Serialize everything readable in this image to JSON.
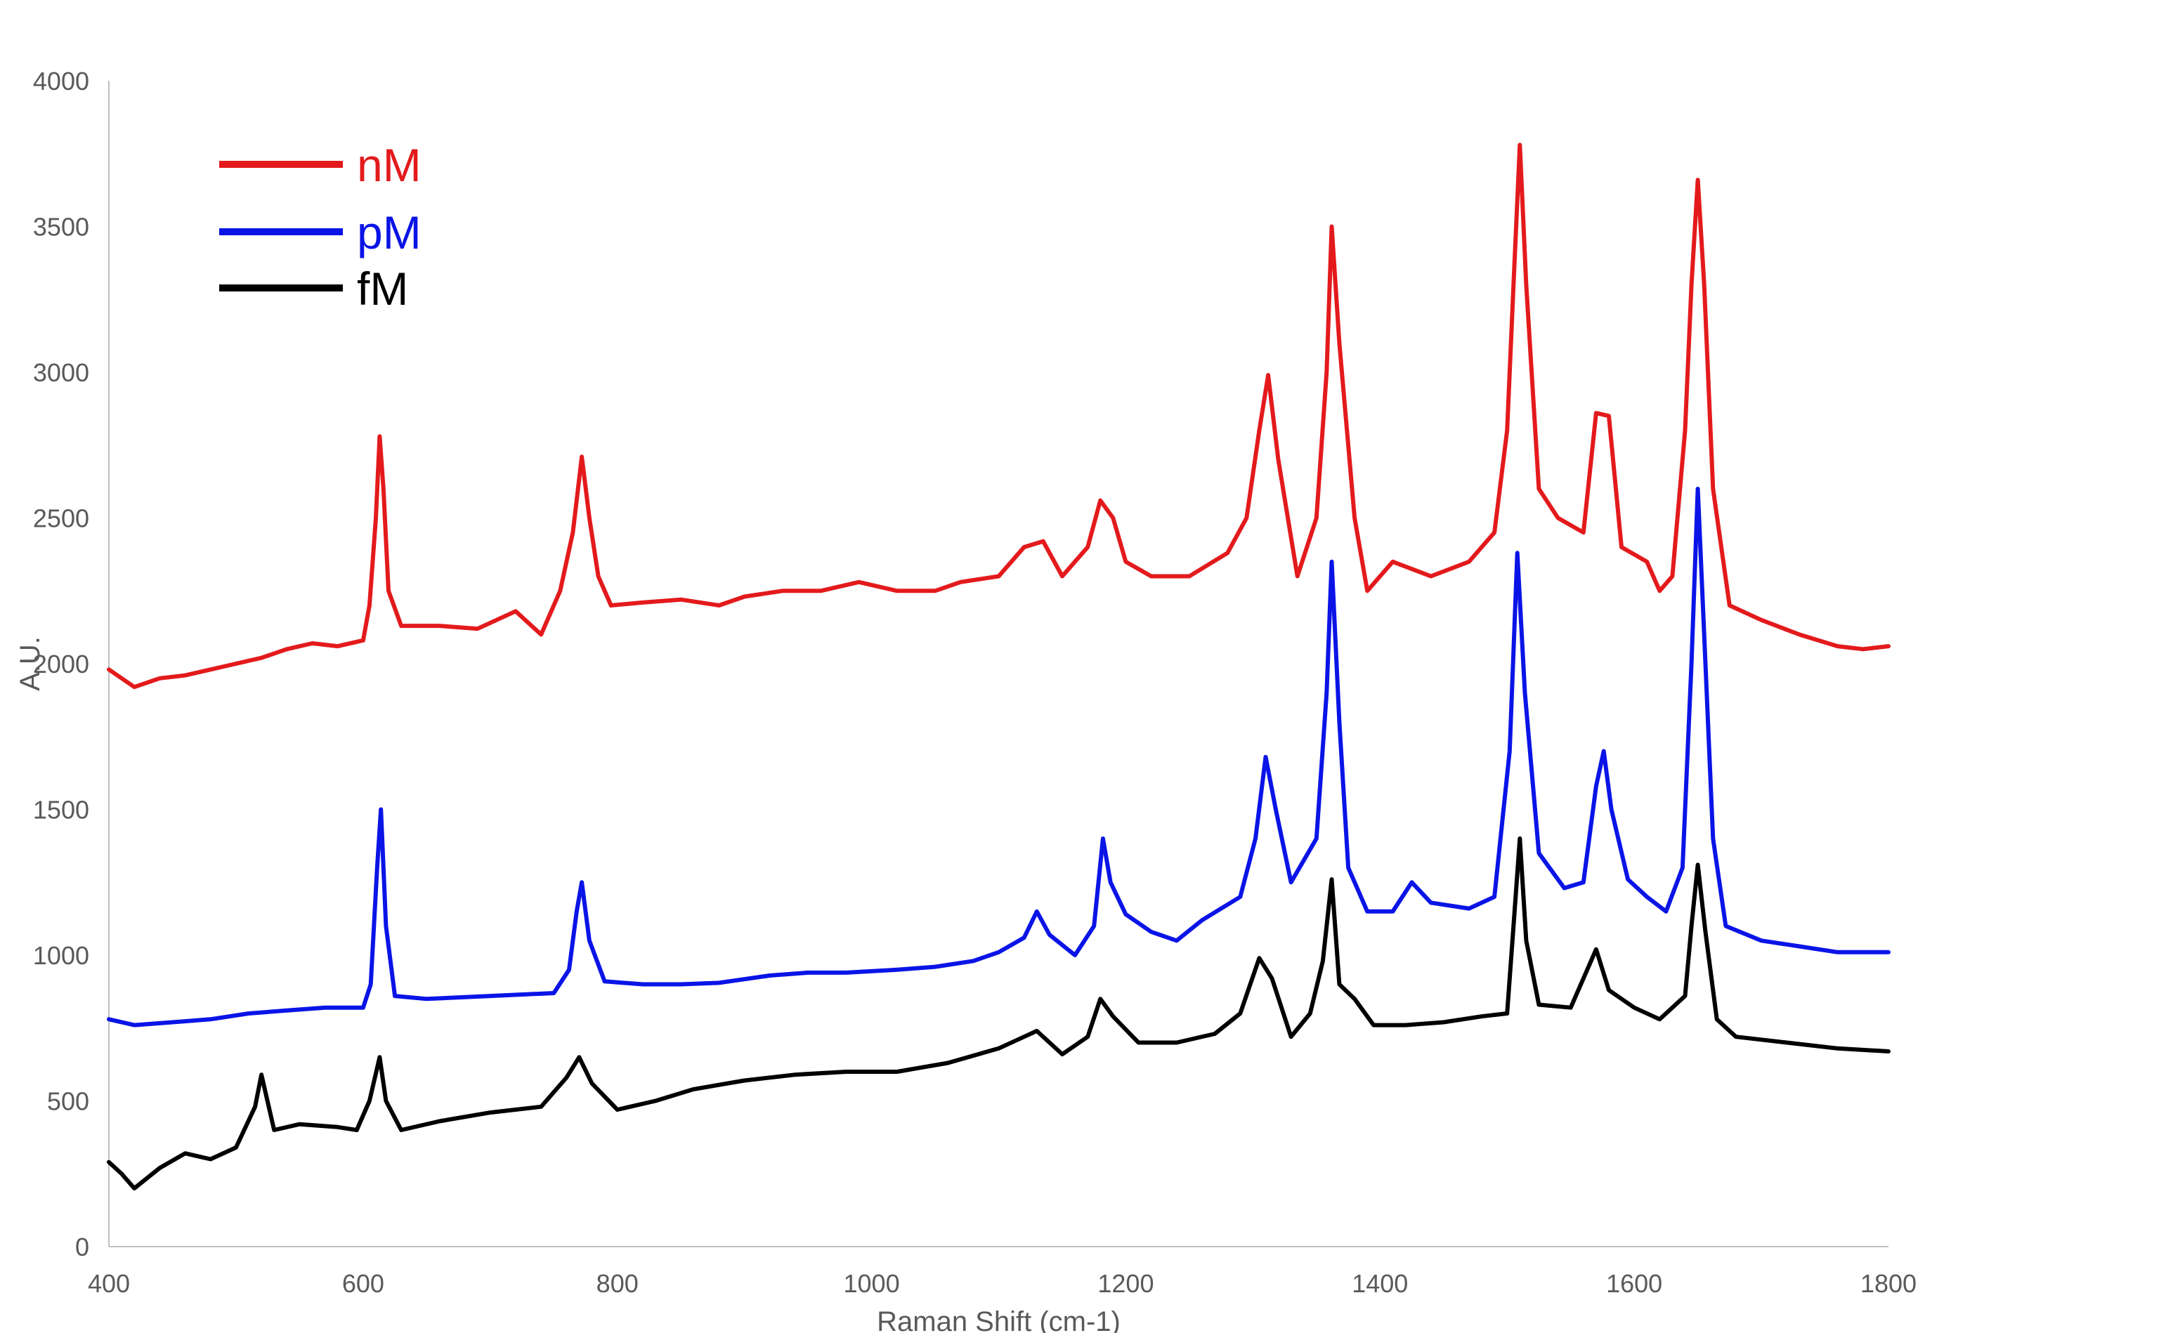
{
  "chart_data": {
    "type": "line",
    "xlabel": "Raman Shift (cm-1)",
    "ylabel": "A.U.",
    "xlim": [
      400,
      1800
    ],
    "ylim": [
      0,
      4000
    ],
    "x_ticks": [
      "400",
      "600",
      "800",
      "1000",
      "1200",
      "1400",
      "1600",
      "1800"
    ],
    "y_ticks": [
      "0",
      "500",
      "1000",
      "1500",
      "2000",
      "2500",
      "3000",
      "3500",
      "4000"
    ],
    "grid": false,
    "legend_position": "top-left",
    "series": [
      {
        "name": "nM",
        "color": "#e31a1c",
        "points": [
          [
            400,
            1980
          ],
          [
            420,
            1920
          ],
          [
            440,
            1950
          ],
          [
            460,
            1960
          ],
          [
            480,
            1980
          ],
          [
            500,
            2000
          ],
          [
            520,
            2020
          ],
          [
            540,
            2050
          ],
          [
            560,
            2070
          ],
          [
            580,
            2060
          ],
          [
            600,
            2080
          ],
          [
            605,
            2200
          ],
          [
            610,
            2500
          ],
          [
            613,
            2780
          ],
          [
            616,
            2600
          ],
          [
            620,
            2250
          ],
          [
            630,
            2130
          ],
          [
            660,
            2130
          ],
          [
            690,
            2120
          ],
          [
            720,
            2180
          ],
          [
            740,
            2100
          ],
          [
            755,
            2250
          ],
          [
            765,
            2450
          ],
          [
            772,
            2710
          ],
          [
            778,
            2500
          ],
          [
            785,
            2300
          ],
          [
            795,
            2200
          ],
          [
            820,
            2210
          ],
          [
            850,
            2220
          ],
          [
            880,
            2200
          ],
          [
            900,
            2230
          ],
          [
            930,
            2250
          ],
          [
            960,
            2250
          ],
          [
            990,
            2280
          ],
          [
            1020,
            2250
          ],
          [
            1050,
            2250
          ],
          [
            1070,
            2280
          ],
          [
            1100,
            2300
          ],
          [
            1120,
            2400
          ],
          [
            1135,
            2420
          ],
          [
            1150,
            2300
          ],
          [
            1170,
            2400
          ],
          [
            1180,
            2560
          ],
          [
            1190,
            2500
          ],
          [
            1200,
            2350
          ],
          [
            1220,
            2300
          ],
          [
            1250,
            2300
          ],
          [
            1280,
            2380
          ],
          [
            1295,
            2500
          ],
          [
            1305,
            2800
          ],
          [
            1312,
            2990
          ],
          [
            1320,
            2700
          ],
          [
            1335,
            2300
          ],
          [
            1350,
            2500
          ],
          [
            1358,
            3000
          ],
          [
            1362,
            3500
          ],
          [
            1368,
            3100
          ],
          [
            1380,
            2500
          ],
          [
            1390,
            2250
          ],
          [
            1410,
            2350
          ],
          [
            1440,
            2300
          ],
          [
            1470,
            2350
          ],
          [
            1490,
            2450
          ],
          [
            1500,
            2800
          ],
          [
            1505,
            3300
          ],
          [
            1510,
            3780
          ],
          [
            1515,
            3300
          ],
          [
            1525,
            2600
          ],
          [
            1540,
            2500
          ],
          [
            1560,
            2450
          ],
          [
            1570,
            2860
          ],
          [
            1580,
            2850
          ],
          [
            1590,
            2400
          ],
          [
            1610,
            2350
          ],
          [
            1620,
            2250
          ],
          [
            1630,
            2300
          ],
          [
            1640,
            2800
          ],
          [
            1645,
            3300
          ],
          [
            1650,
            3660
          ],
          [
            1655,
            3300
          ],
          [
            1662,
            2600
          ],
          [
            1675,
            2200
          ],
          [
            1700,
            2150
          ],
          [
            1730,
            2100
          ],
          [
            1760,
            2060
          ],
          [
            1780,
            2050
          ],
          [
            1800,
            2060
          ]
        ]
      },
      {
        "name": "pM",
        "color": "#0a14e6",
        "points": [
          [
            400,
            780
          ],
          [
            420,
            760
          ],
          [
            450,
            770
          ],
          [
            480,
            780
          ],
          [
            510,
            800
          ],
          [
            540,
            810
          ],
          [
            570,
            820
          ],
          [
            600,
            820
          ],
          [
            606,
            900
          ],
          [
            611,
            1300
          ],
          [
            614,
            1500
          ],
          [
            618,
            1100
          ],
          [
            625,
            860
          ],
          [
            650,
            850
          ],
          [
            700,
            860
          ],
          [
            750,
            870
          ],
          [
            762,
            950
          ],
          [
            768,
            1150
          ],
          [
            772,
            1250
          ],
          [
            778,
            1050
          ],
          [
            790,
            910
          ],
          [
            820,
            900
          ],
          [
            850,
            900
          ],
          [
            880,
            905
          ],
          [
            920,
            930
          ],
          [
            950,
            940
          ],
          [
            980,
            940
          ],
          [
            1020,
            950
          ],
          [
            1050,
            960
          ],
          [
            1080,
            980
          ],
          [
            1100,
            1010
          ],
          [
            1120,
            1060
          ],
          [
            1130,
            1150
          ],
          [
            1140,
            1070
          ],
          [
            1160,
            1000
          ],
          [
            1175,
            1100
          ],
          [
            1182,
            1400
          ],
          [
            1188,
            1250
          ],
          [
            1200,
            1140
          ],
          [
            1220,
            1080
          ],
          [
            1240,
            1050
          ],
          [
            1260,
            1120
          ],
          [
            1290,
            1200
          ],
          [
            1302,
            1400
          ],
          [
            1310,
            1680
          ],
          [
            1318,
            1500
          ],
          [
            1330,
            1250
          ],
          [
            1350,
            1400
          ],
          [
            1358,
            1900
          ],
          [
            1362,
            2350
          ],
          [
            1368,
            1800
          ],
          [
            1375,
            1300
          ],
          [
            1390,
            1150
          ],
          [
            1410,
            1150
          ],
          [
            1425,
            1250
          ],
          [
            1440,
            1180
          ],
          [
            1470,
            1160
          ],
          [
            1490,
            1200
          ],
          [
            1502,
            1700
          ],
          [
            1508,
            2380
          ],
          [
            1514,
            1900
          ],
          [
            1525,
            1350
          ],
          [
            1545,
            1230
          ],
          [
            1560,
            1250
          ],
          [
            1570,
            1580
          ],
          [
            1576,
            1700
          ],
          [
            1582,
            1500
          ],
          [
            1595,
            1260
          ],
          [
            1610,
            1200
          ],
          [
            1625,
            1150
          ],
          [
            1638,
            1300
          ],
          [
            1645,
            2000
          ],
          [
            1650,
            2600
          ],
          [
            1656,
            2000
          ],
          [
            1662,
            1400
          ],
          [
            1672,
            1100
          ],
          [
            1700,
            1050
          ],
          [
            1730,
            1030
          ],
          [
            1760,
            1010
          ],
          [
            1800,
            1010
          ]
        ]
      },
      {
        "name": "fM",
        "color": "#000000",
        "points": [
          [
            400,
            290
          ],
          [
            410,
            250
          ],
          [
            420,
            200
          ],
          [
            440,
            270
          ],
          [
            460,
            320
          ],
          [
            480,
            300
          ],
          [
            500,
            340
          ],
          [
            515,
            480
          ],
          [
            520,
            590
          ],
          [
            530,
            400
          ],
          [
            550,
            420
          ],
          [
            580,
            410
          ],
          [
            595,
            400
          ],
          [
            605,
            500
          ],
          [
            613,
            650
          ],
          [
            618,
            500
          ],
          [
            630,
            400
          ],
          [
            660,
            430
          ],
          [
            700,
            460
          ],
          [
            740,
            480
          ],
          [
            760,
            580
          ],
          [
            770,
            650
          ],
          [
            780,
            560
          ],
          [
            800,
            470
          ],
          [
            830,
            500
          ],
          [
            860,
            540
          ],
          [
            900,
            570
          ],
          [
            940,
            590
          ],
          [
            980,
            600
          ],
          [
            1020,
            600
          ],
          [
            1060,
            630
          ],
          [
            1100,
            680
          ],
          [
            1120,
            720
          ],
          [
            1130,
            740
          ],
          [
            1150,
            660
          ],
          [
            1170,
            720
          ],
          [
            1180,
            850
          ],
          [
            1190,
            790
          ],
          [
            1210,
            700
          ],
          [
            1240,
            700
          ],
          [
            1270,
            730
          ],
          [
            1290,
            800
          ],
          [
            1305,
            990
          ],
          [
            1315,
            920
          ],
          [
            1330,
            720
          ],
          [
            1345,
            800
          ],
          [
            1355,
            980
          ],
          [
            1362,
            1260
          ],
          [
            1368,
            900
          ],
          [
            1380,
            850
          ],
          [
            1395,
            760
          ],
          [
            1420,
            760
          ],
          [
            1450,
            770
          ],
          [
            1480,
            790
          ],
          [
            1500,
            800
          ],
          [
            1505,
            1100
          ],
          [
            1510,
            1400
          ],
          [
            1515,
            1050
          ],
          [
            1525,
            830
          ],
          [
            1550,
            820
          ],
          [
            1570,
            1020
          ],
          [
            1580,
            880
          ],
          [
            1600,
            820
          ],
          [
            1620,
            780
          ],
          [
            1640,
            860
          ],
          [
            1645,
            1100
          ],
          [
            1650,
            1310
          ],
          [
            1656,
            1080
          ],
          [
            1665,
            780
          ],
          [
            1680,
            720
          ],
          [
            1720,
            700
          ],
          [
            1760,
            680
          ],
          [
            1800,
            670
          ]
        ]
      }
    ]
  }
}
